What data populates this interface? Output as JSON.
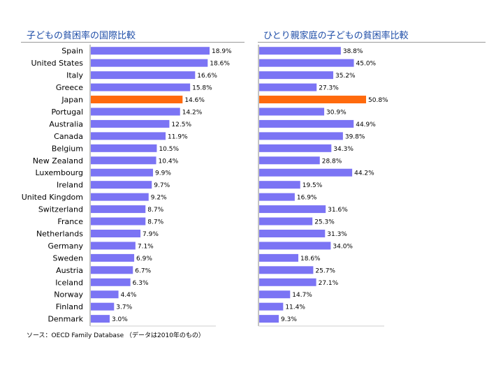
{
  "chart_data": [
    {
      "type": "bar",
      "orientation": "horizontal",
      "title": "子どもの貧困率の国際比較",
      "categories": [
        "Spain",
        "United States",
        "Italy",
        "Greece",
        "Japan",
        "Portugal",
        "Australia",
        "Canada",
        "Belgium",
        "New Zealand",
        "Luxembourg",
        "Ireland",
        "United Kingdom",
        "Switzerland",
        "France",
        "Netherlands",
        "Germany",
        "Sweden",
        "Austria",
        "Iceland",
        "Norway",
        "Finland",
        "Denmark"
      ],
      "values": [
        18.9,
        18.6,
        16.6,
        15.8,
        14.6,
        14.2,
        12.5,
        11.9,
        10.5,
        10.4,
        9.9,
        9.7,
        9.2,
        8.7,
        8.7,
        7.9,
        7.1,
        6.9,
        6.7,
        6.3,
        4.4,
        3.7,
        3.0
      ],
      "data_labels": [
        "18.9%",
        "18.6%",
        "16.6%",
        "15.8%",
        "14.6%",
        "14.2%",
        "12.5%",
        "11.9%",
        "10.5%",
        "10.4%",
        "9.9%",
        "9.7%",
        "9.2%",
        "8.7%",
        "8.7%",
        "7.9%",
        "7.1%",
        "6.9%",
        "6.7%",
        "6.3%",
        "4.4%",
        "3.7%",
        "3.0%"
      ],
      "highlight": "Japan",
      "grid": false,
      "legend": "none"
    },
    {
      "type": "bar",
      "orientation": "horizontal",
      "title": "ひとり親家庭の子どもの貧困率比較",
      "categories": [
        "Spain",
        "United States",
        "Italy",
        "Greece",
        "Japan",
        "Portugal",
        "Australia",
        "Canada",
        "Belgium",
        "New Zealand",
        "Luxembourg",
        "Ireland",
        "United Kingdom",
        "Switzerland",
        "France",
        "Netherlands",
        "Germany",
        "Sweden",
        "Austria",
        "Iceland",
        "Norway",
        "Finland",
        "Denmark"
      ],
      "values": [
        38.8,
        45.0,
        35.2,
        27.3,
        50.8,
        30.9,
        44.9,
        39.8,
        34.3,
        28.8,
        44.2,
        19.5,
        16.9,
        31.6,
        25.3,
        31.3,
        34.0,
        18.6,
        25.7,
        27.1,
        14.7,
        11.4,
        9.3
      ],
      "data_labels": [
        "38.8%",
        "45.0%",
        "35.2%",
        "27.3%",
        "50.8%",
        "30.9%",
        "44.9%",
        "39.8%",
        "34.3%",
        "28.8%",
        "44.2%",
        "19.5%",
        "16.9%",
        "31.6%",
        "25.3%",
        "31.3%",
        "34.0%",
        "18.6%",
        "25.7%",
        "27.1%",
        "14.7%",
        "11.4%",
        "9.3%"
      ],
      "highlight": "Japan",
      "grid": false,
      "legend": "none"
    }
  ],
  "source": "ソース：OECD Family Database （データは2010年のもの）",
  "colors": {
    "bar": "#7b74f4",
    "highlight": "#ff6a0d",
    "title": "#1f4ea8",
    "rule": "#9a9a9a",
    "axis": "#888888",
    "text": "#000000"
  }
}
